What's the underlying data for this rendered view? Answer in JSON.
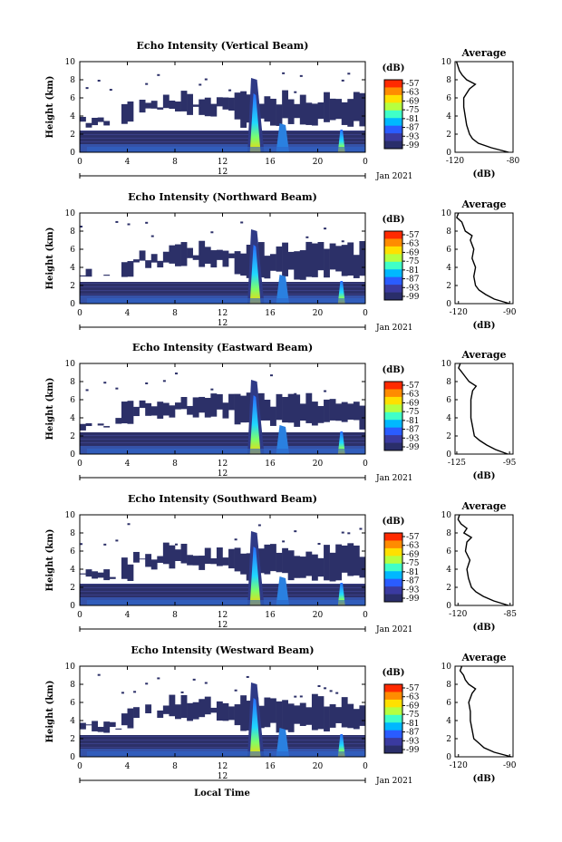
{
  "shared": {
    "ylabel": "Height (km)",
    "x_ticks": [
      "0",
      "4",
      "8",
      "12",
      "16",
      "20",
      "0"
    ],
    "date_marker": "12",
    "date_label": "Jan 2021",
    "xlabel": "Local Time",
    "colorbar_unit": "(dB)",
    "colorbar_ticks": [
      "-57",
      "-63",
      "-69",
      "-75",
      "-81",
      "-87",
      "-93",
      "-99"
    ],
    "colorbar_colors": [
      "#ff2a00",
      "#ff8c00",
      "#ffe000",
      "#b6ff40",
      "#40ffc8",
      "#00b8ff",
      "#2a5cff",
      "#3a3aa0",
      "#2a2e6a"
    ],
    "avg_title": "Average",
    "avg_unit": "(dB)",
    "y_ticks": [
      "0",
      "2",
      "4",
      "6",
      "8",
      "10"
    ]
  },
  "chart_data": [
    {
      "type": "heatmap",
      "title": "Echo Intensity (Vertical Beam)",
      "x_range": [
        0,
        24
      ],
      "ylim": [
        0,
        10
      ],
      "profile": {
        "xticks": [
          "-120",
          "-80"
        ],
        "xlim": [
          -120,
          -80
        ],
        "heights": [
          0,
          0.5,
          1,
          1.5,
          2,
          3,
          4,
          5,
          6,
          7,
          7.5,
          8,
          8.5,
          9,
          9.5,
          10
        ],
        "values": [
          -83,
          -95,
          -104,
          -108,
          -110,
          -112,
          -113,
          -114,
          -114,
          -110,
          -106,
          -112,
          -115,
          -117,
          -118,
          -119
        ]
      }
    },
    {
      "type": "heatmap",
      "title": "Echo Intensity (Northward Beam)",
      "x_range": [
        0,
        24
      ],
      "ylim": [
        0,
        10
      ],
      "profile": {
        "xticks": [
          "-120",
          "-90"
        ],
        "xlim": [
          -122,
          -88
        ],
        "heights": [
          0,
          0.5,
          1,
          1.5,
          2,
          3,
          4,
          5,
          6,
          7,
          7.5,
          8,
          8.5,
          9,
          9.5,
          10
        ],
        "values": [
          -90,
          -99,
          -104,
          -108,
          -110,
          -111,
          -110,
          -112,
          -111,
          -113,
          -112,
          -116,
          -117,
          -118,
          -121,
          -120
        ]
      }
    },
    {
      "type": "heatmap",
      "title": "Echo Intensity (Eastward Beam)",
      "x_range": [
        0,
        24
      ],
      "ylim": [
        0,
        10
      ],
      "profile": {
        "xticks": [
          "-125",
          "-95"
        ],
        "xlim": [
          -126,
          -93
        ],
        "heights": [
          0,
          0.5,
          1,
          1.5,
          2,
          3,
          4,
          5,
          6,
          7,
          7.5,
          8,
          8.5,
          9,
          9.5,
          10
        ],
        "values": [
          -96,
          -103,
          -108,
          -112,
          -115,
          -116,
          -117,
          -117,
          -117,
          -116,
          -114,
          -118,
          -120,
          -122,
          -124,
          -123
        ]
      }
    },
    {
      "type": "heatmap",
      "title": "Echo Intensity (Southward Beam)",
      "x_range": [
        0,
        24
      ],
      "ylim": [
        0,
        10
      ],
      "profile": {
        "xticks": [
          "-120",
          "-85"
        ],
        "xlim": [
          -122,
          -83
        ],
        "heights": [
          0,
          0.5,
          1,
          1.5,
          2,
          3,
          4,
          5,
          6,
          7,
          7.5,
          8,
          8.5,
          9,
          9.5,
          10
        ],
        "values": [
          -86,
          -96,
          -103,
          -108,
          -111,
          -113,
          -114,
          -112,
          -115,
          -114,
          -111,
          -116,
          -114,
          -118,
          -120,
          -119
        ]
      }
    },
    {
      "type": "heatmap",
      "title": "Echo Intensity (Westward Beam)",
      "x_range": [
        0,
        24
      ],
      "ylim": [
        0,
        10
      ],
      "profile": {
        "xticks": [
          "-120",
          "-90"
        ],
        "xlim": [
          -122,
          -88
        ],
        "heights": [
          0,
          0.5,
          1,
          1.5,
          2,
          3,
          4,
          5,
          6,
          7,
          7.5,
          8,
          8.5,
          9,
          9.5,
          10
        ],
        "values": [
          -89,
          -99,
          -105,
          -108,
          -111,
          -112,
          -113,
          -113,
          -114,
          -112,
          -110,
          -114,
          -116,
          -117,
          -119,
          -118
        ]
      }
    }
  ]
}
